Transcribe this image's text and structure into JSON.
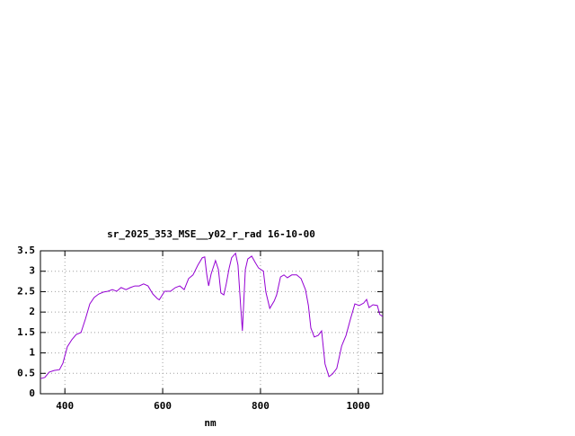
{
  "chart_data": {
    "type": "line",
    "title": "sr_2025_353_MSE__y02_r_rad 16-10-00",
    "x_label": "nm",
    "xlim": [
      350,
      1050
    ],
    "xticks": [
      400,
      600,
      800,
      1000
    ],
    "ylim": [
      0,
      3.5
    ],
    "yticks": [
      0,
      0.5,
      1,
      1.5,
      2,
      2.5,
      3,
      3.5
    ],
    "grid": true,
    "x": [
      350,
      359,
      368,
      378,
      389,
      396,
      405,
      414,
      423,
      433,
      442,
      451,
      460,
      469,
      479,
      488,
      497,
      506,
      515,
      525,
      534,
      543,
      552,
      561,
      570,
      580,
      589,
      593,
      604,
      616,
      626,
      635,
      644,
      653,
      662,
      672,
      681,
      686,
      690,
      694,
      699,
      708,
      714,
      719,
      725,
      730,
      736,
      741,
      749,
      754,
      760,
      763,
      769,
      774,
      782,
      789,
      796,
      806,
      811,
      819,
      828,
      833,
      841,
      848,
      855,
      864,
      874,
      883,
      892,
      898,
      903,
      910,
      918,
      925,
      932,
      940,
      947,
      956,
      966,
      975,
      984,
      993,
      1002,
      1011,
      1017,
      1022,
      1030,
      1039,
      1044,
      1050
    ],
    "series": [
      {
        "color": "#9400d3",
        "values": [
          0.37,
          0.4,
          0.53,
          0.57,
          0.59,
          0.75,
          1.15,
          1.32,
          1.45,
          1.5,
          1.83,
          2.2,
          2.36,
          2.44,
          2.49,
          2.51,
          2.55,
          2.51,
          2.6,
          2.55,
          2.6,
          2.64,
          2.64,
          2.69,
          2.64,
          2.44,
          2.33,
          2.3,
          2.51,
          2.51,
          2.6,
          2.64,
          2.55,
          2.82,
          2.91,
          3.15,
          3.33,
          3.35,
          2.93,
          2.64,
          2.93,
          3.26,
          3.04,
          2.47,
          2.42,
          2.69,
          3.08,
          3.33,
          3.44,
          3.15,
          2.05,
          1.54,
          3.04,
          3.3,
          3.37,
          3.22,
          3.08,
          3.0,
          2.49,
          2.09,
          2.27,
          2.42,
          2.86,
          2.91,
          2.84,
          2.91,
          2.91,
          2.82,
          2.55,
          2.16,
          1.61,
          1.39,
          1.43,
          1.54,
          0.73,
          0.42,
          0.48,
          0.62,
          1.17,
          1.43,
          1.83,
          2.2,
          2.16,
          2.22,
          2.31,
          2.11,
          2.18,
          2.16,
          1.94,
          1.89
        ]
      }
    ]
  }
}
